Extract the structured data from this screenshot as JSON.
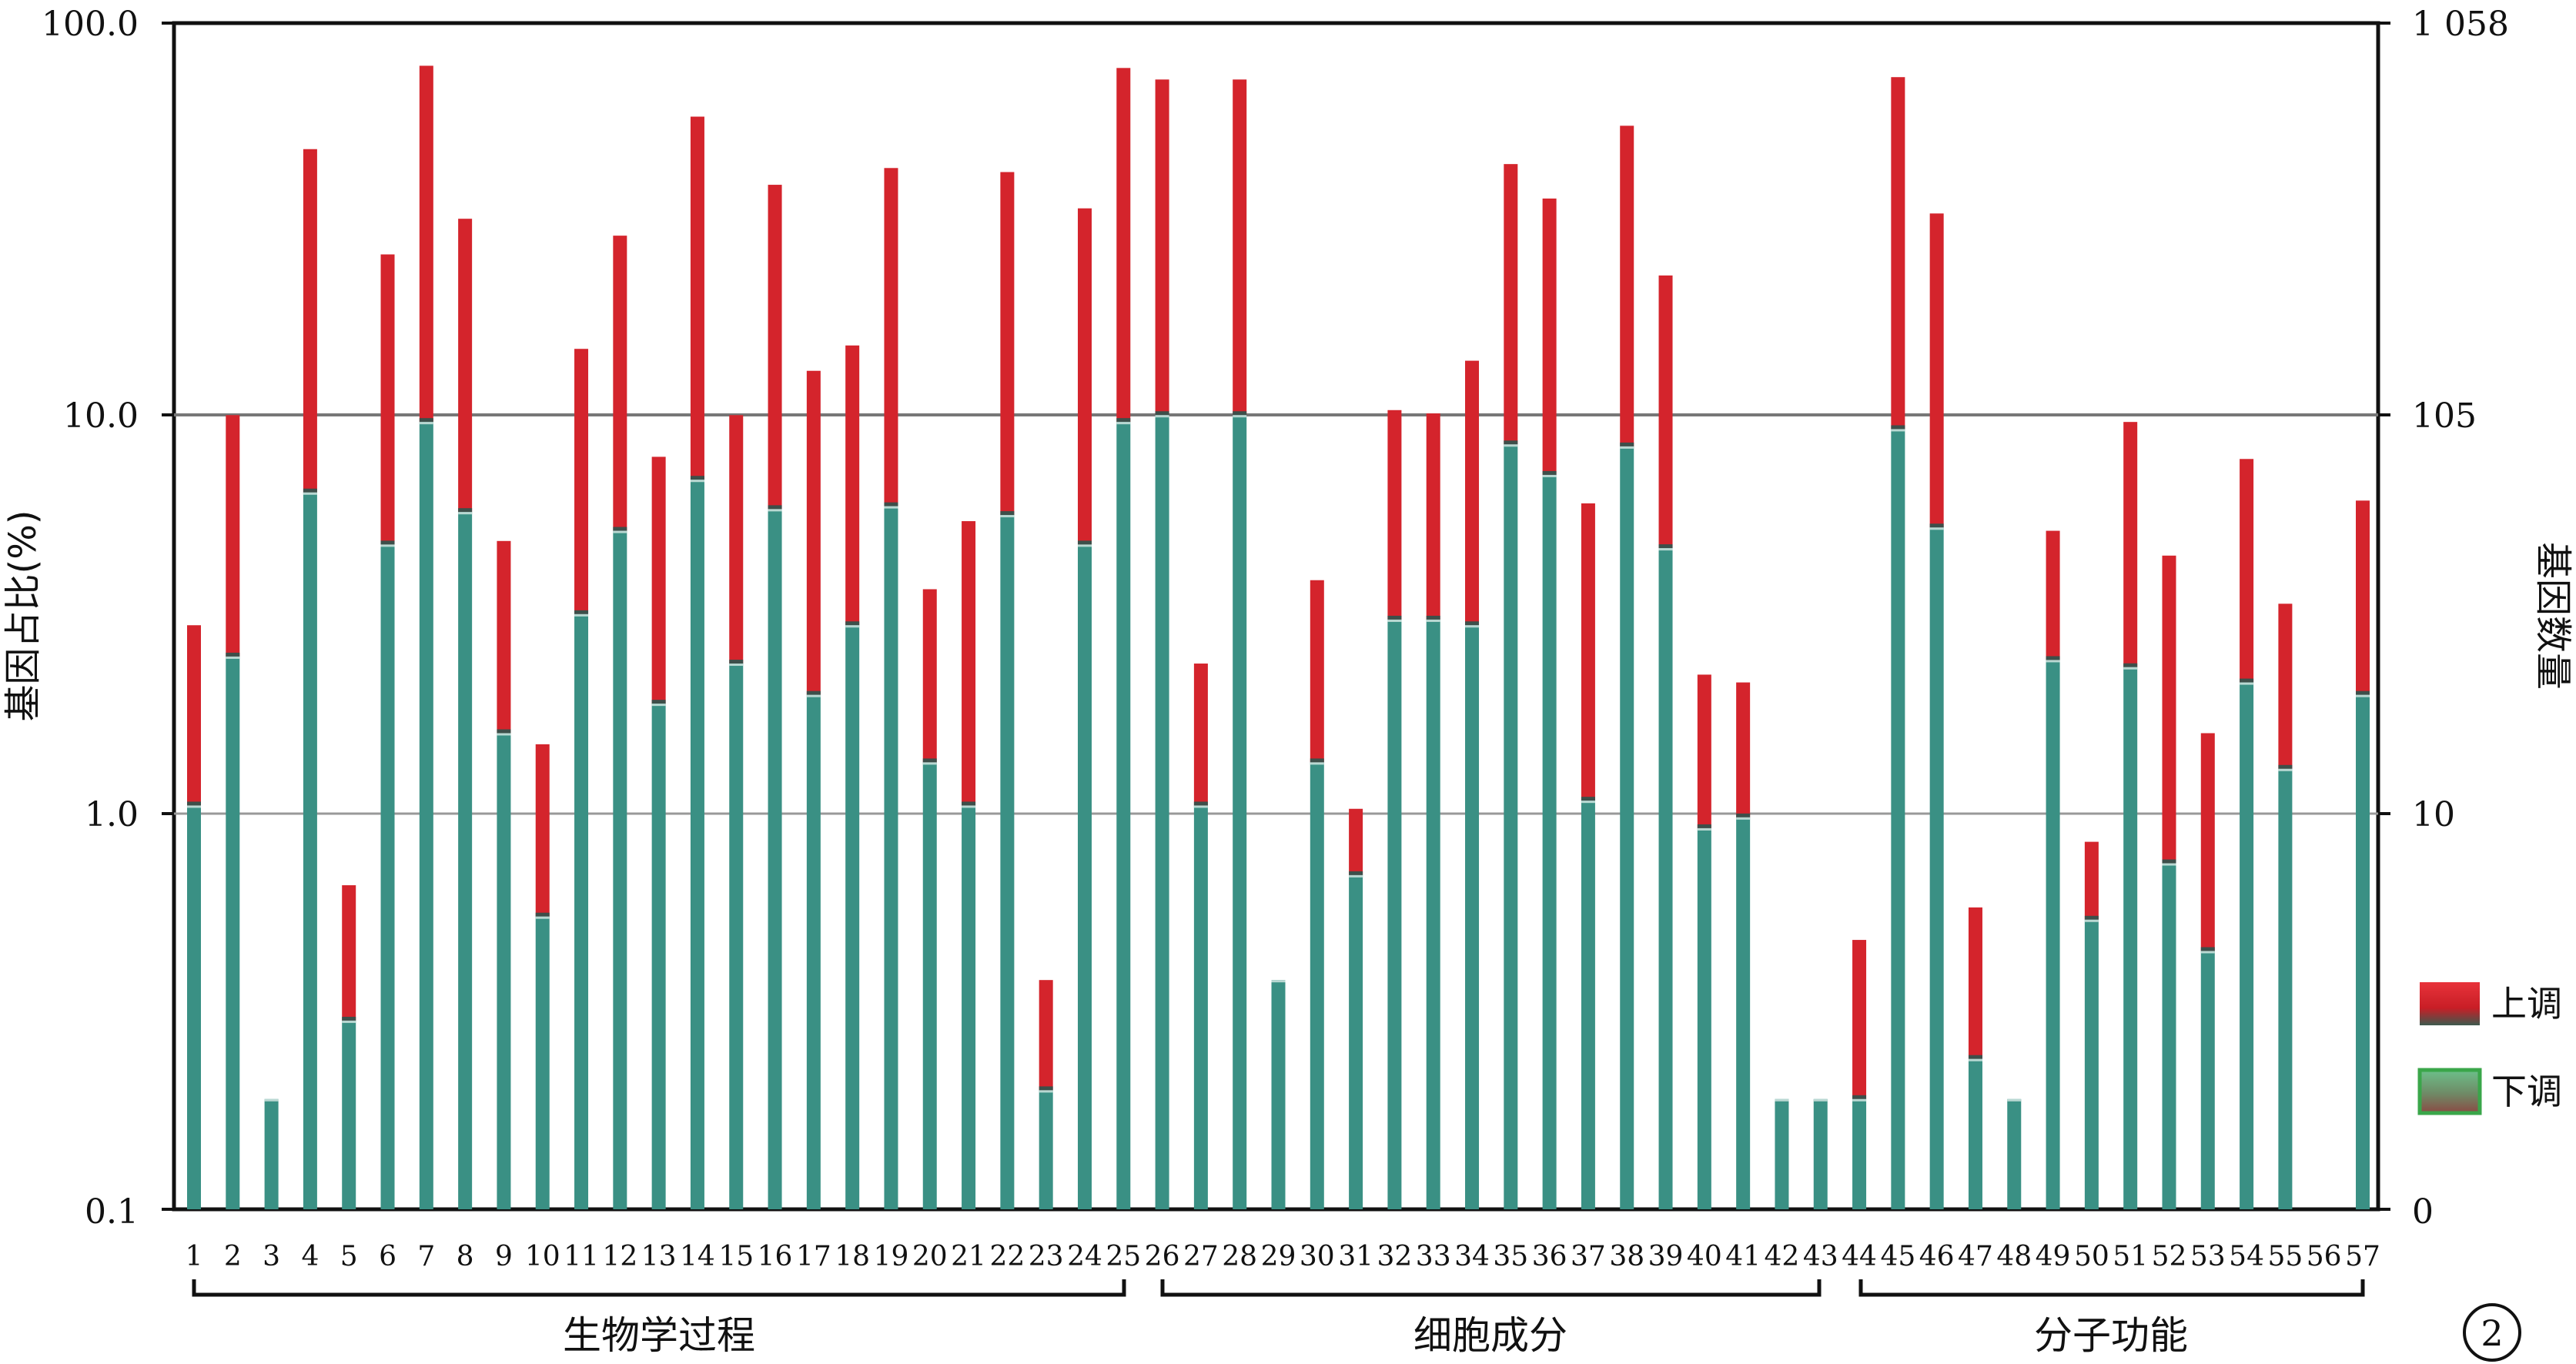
{
  "chart_data": {
    "type": "bar",
    "stacked": true,
    "y_scale": "log",
    "ylim": [
      0.1,
      100.0
    ],
    "y_left_label": "基因占比(%)",
    "y_right_label": "基因数量",
    "y_left_ticks": [
      "0.1",
      "1.0",
      "10.0",
      "100.0"
    ],
    "y_right_ticks": [
      "0",
      "10",
      "105",
      "1 058"
    ],
    "grid": "horizontal at 1.0 and 10.0",
    "legend_position": "right",
    "categories": [
      "1",
      "2",
      "3",
      "4",
      "5",
      "6",
      "7",
      "8",
      "9",
      "10",
      "11",
      "12",
      "13",
      "14",
      "15",
      "16",
      "17",
      "18",
      "19",
      "20",
      "21",
      "22",
      "23",
      "24",
      "25",
      "26",
      "27",
      "28",
      "29",
      "30",
      "31",
      "32",
      "33",
      "34",
      "35",
      "36",
      "37",
      "38",
      "39",
      "40",
      "41",
      "42",
      "43",
      "44",
      "45",
      "46",
      "47",
      "48",
      "49",
      "50",
      "51",
      "52",
      "53",
      "54",
      "55",
      "56",
      "57"
    ],
    "series": [
      {
        "name": "下调",
        "color": "#3a9084",
        "values": [
          1.05,
          2.5,
          0.19,
          6.5,
          0.3,
          4.8,
          9.8,
          5.8,
          1.6,
          0.55,
          3.2,
          5.2,
          1.9,
          7.0,
          2.4,
          5.9,
          2.0,
          3.0,
          6.0,
          1.35,
          1.05,
          5.7,
          0.2,
          4.8,
          9.8,
          10.2,
          1.05,
          10.2,
          0.38,
          1.35,
          0.7,
          3.1,
          3.1,
          3.0,
          8.6,
          7.2,
          1.08,
          8.5,
          4.7,
          0.92,
          0.98,
          0.19,
          0.19,
          0.19,
          9.4,
          5.3,
          0.24,
          0.19,
          2.45,
          0.54,
          2.35,
          0.75,
          0.45,
          2.15,
          1.3,
          0,
          2.0
        ]
      },
      {
        "name": "上调",
        "color": "#d4242c",
        "values": [
          3.0,
          10.2,
          0.19,
          48.0,
          0.66,
          26.0,
          78.0,
          32.0,
          4.9,
          1.5,
          15.0,
          29.0,
          8.0,
          58.0,
          10.2,
          39.0,
          13.2,
          15.3,
          43.0,
          3.7,
          5.5,
          42.0,
          0.38,
          34.0,
          77.0,
          72.0,
          2.4,
          72.0,
          0.38,
          3.9,
          1.03,
          10.5,
          10.3,
          14.0,
          44.0,
          36.0,
          6.1,
          55.0,
          23.0,
          2.25,
          2.15,
          0.19,
          0.19,
          0.48,
          73.0,
          33.0,
          0.58,
          0.19,
          5.2,
          0.85,
          9.8,
          4.5,
          1.6,
          7.9,
          3.4,
          0,
          6.2
        ]
      }
    ],
    "groups": [
      {
        "label": "生物学过程",
        "from": "1",
        "to": "25"
      },
      {
        "label": "细胞成分",
        "from": "26",
        "to": "43"
      },
      {
        "label": "分子功能",
        "from": "44",
        "to": "57"
      }
    ],
    "legend": [
      {
        "label": "上调",
        "color": "#d4242c"
      },
      {
        "label": "下调",
        "color": "#3a9084"
      }
    ],
    "panel_label": "2"
  }
}
